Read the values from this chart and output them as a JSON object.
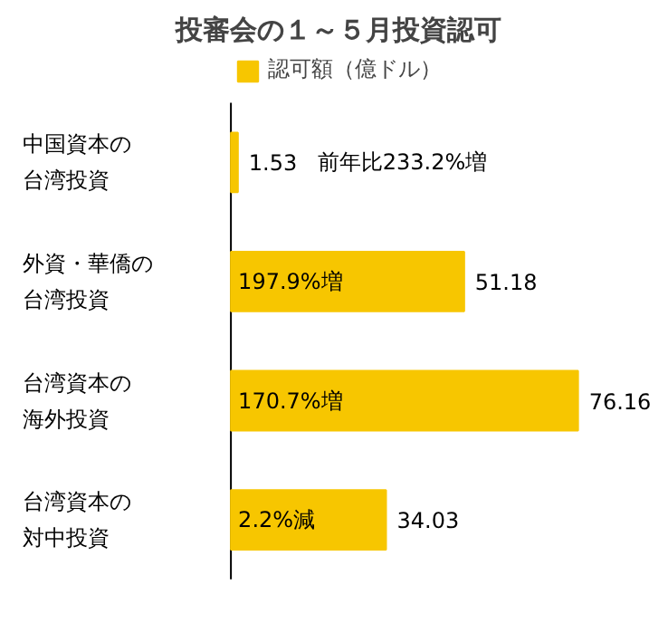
{
  "chart_data": {
    "type": "bar",
    "orientation": "horizontal",
    "title": "投審会の１～５月投資認可",
    "categories": [
      "中国資本の台湾投資",
      "外資・華僑の台湾投資",
      "台湾資本の海外投資",
      "台湾資本の対中投資"
    ],
    "series": [
      {
        "name": "認可額（億ドル）",
        "color": "#f7c600",
        "values": [
          1.53,
          51.18,
          76.16,
          34.03
        ]
      }
    ],
    "data_labels": true,
    "legend": "top",
    "grid": false,
    "annotations": [
      "前年比233.2%増",
      "197.9%増",
      "170.7%増",
      "2.2%減"
    ]
  }
}
